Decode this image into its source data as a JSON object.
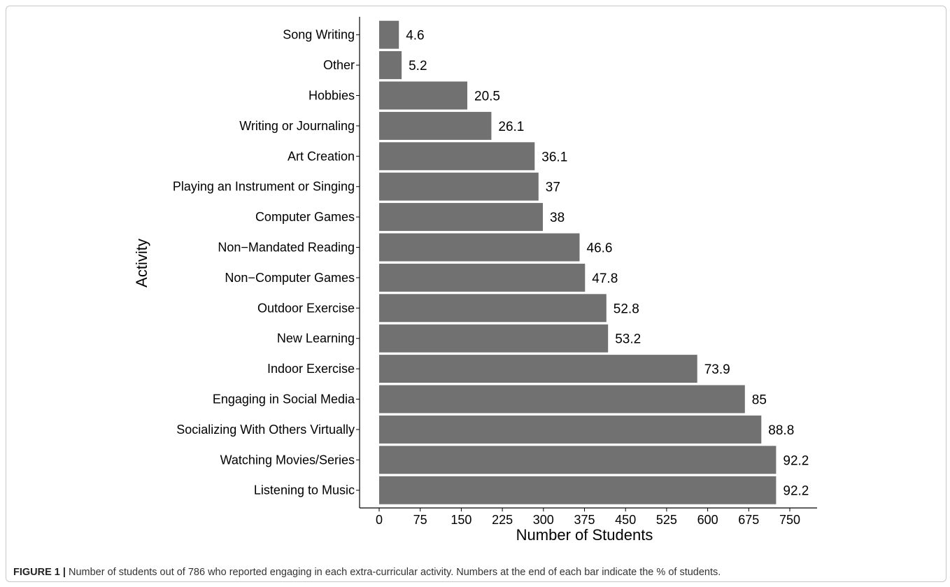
{
  "caption": {
    "lead": "FIGURE 1 |",
    "text": " Number of students out of 786 who reported engaging in each extra-curricular activity. Numbers at the end of each bar indicate the % of students."
  },
  "colors": {
    "bar": "#717171",
    "axis": "#000000",
    "text": "#000000"
  },
  "chart_data": {
    "type": "bar",
    "orientation": "horizontal",
    "xlabel": "Number of Students",
    "ylabel": "Activity",
    "xlim": [
      0,
      750
    ],
    "xticks": [
      0,
      75,
      150,
      225,
      300,
      375,
      450,
      525,
      600,
      675,
      750
    ],
    "grid": false,
    "categories": [
      "Song Writing",
      "Other",
      "Hobbies",
      "Writing or Journaling",
      "Art Creation",
      "Playing an Instrument or Singing",
      "Computer Games",
      "Non−Mandated Reading",
      "Non−Computer Games",
      "Outdoor Exercise",
      "New Learning",
      "Indoor Exercise",
      "Engaging in Social Media",
      "Socializing With Others Virtually",
      "Watching Movies/Series",
      "Listening to Music"
    ],
    "values": [
      36,
      41,
      161,
      205,
      284,
      291,
      299,
      366,
      376,
      415,
      418,
      581,
      668,
      698,
      725,
      725
    ],
    "labels": [
      "4.6",
      "5.2",
      "20.5",
      "26.1",
      "36.1",
      "37",
      "38",
      "46.6",
      "47.8",
      "52.8",
      "53.2",
      "73.9",
      "85",
      "88.8",
      "92.2",
      "92.2"
    ]
  }
}
